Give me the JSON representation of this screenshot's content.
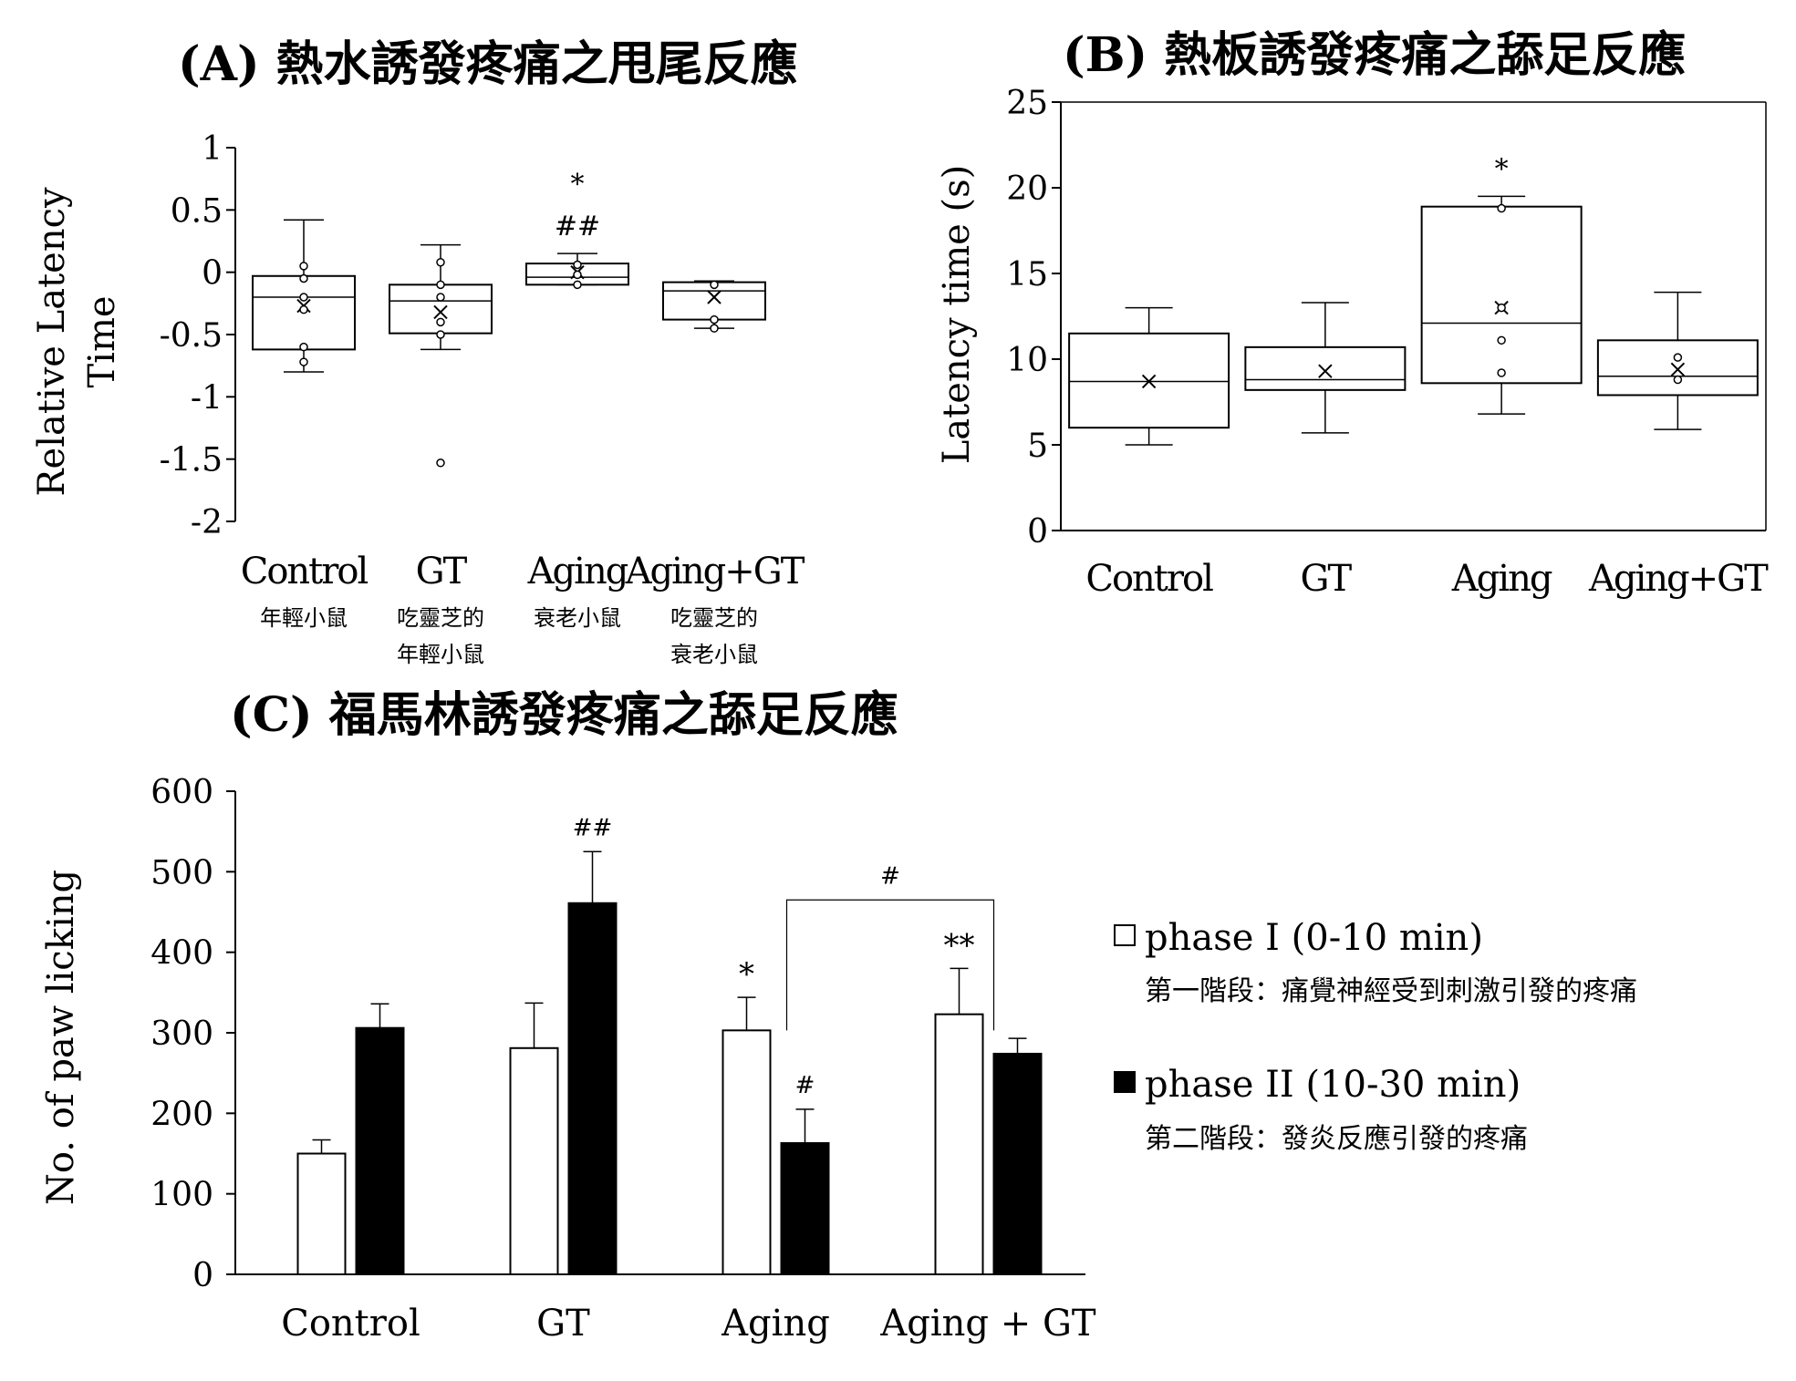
{
  "chart_data": [
    {
      "id": "A",
      "type": "box",
      "title": "(A) 熱水誘發疼痛之甩尾反應",
      "ylabel_lines": [
        "Relative Latency",
        "Time"
      ],
      "ylim": [
        -2,
        1
      ],
      "yticks": [
        1,
        0.5,
        0,
        -0.5,
        -1,
        -1.5,
        -2
      ],
      "ytick_labels": [
        "1",
        "0.5",
        "0",
        "-0.5",
        "-1",
        "-1.5",
        "-2"
      ],
      "categories": [
        "Control",
        "GT",
        "Aging",
        "Aging+GT"
      ],
      "sublabels": [
        [
          "年輕小鼠"
        ],
        [
          "吃靈芝的",
          "年輕小鼠"
        ],
        [
          "衰老小鼠"
        ],
        [
          "吃靈芝的",
          "衰老小鼠"
        ]
      ],
      "boxes": [
        {
          "min": -0.8,
          "q1": -0.62,
          "median": -0.2,
          "q3": -0.03,
          "max": 0.42,
          "mean": -0.27,
          "points": [
            0.05,
            -0.05,
            -0.2,
            -0.3,
            -0.6,
            -0.72
          ]
        },
        {
          "min": -0.62,
          "q1": -0.49,
          "median": -0.23,
          "q3": -0.1,
          "max": 0.22,
          "mean": -0.32,
          "points": [
            0.08,
            -0.1,
            -0.2,
            -0.4,
            -0.5,
            -1.53
          ]
        },
        {
          "min": -0.1,
          "q1": -0.1,
          "median": -0.04,
          "q3": 0.07,
          "max": 0.15,
          "mean": 0.0,
          "points": [
            0.06,
            -0.02,
            -0.1
          ]
        },
        {
          "min": -0.45,
          "q1": -0.38,
          "median": -0.15,
          "q3": -0.08,
          "max": -0.07,
          "mean": -0.2,
          "points": [
            -0.1,
            -0.38,
            -0.45
          ]
        }
      ],
      "annotations": [
        {
          "category": "Aging",
          "lines": [
            "*",
            "##"
          ]
        }
      ]
    },
    {
      "id": "B",
      "type": "box",
      "title": "(B) 熱板誘發疼痛之舔足反應",
      "ylabel": "Latency time (s)",
      "ylim": [
        0,
        25
      ],
      "yticks": [
        25,
        20,
        15,
        10,
        5,
        0
      ],
      "ytick_labels": [
        "25",
        "20",
        "15",
        "10",
        "5",
        "0"
      ],
      "categories": [
        "Control",
        "GT",
        "Aging",
        "Aging+GT"
      ],
      "boxes": [
        {
          "min": 5,
          "q1": 6,
          "median": 8.7,
          "q3": 11.5,
          "max": 13,
          "mean": 8.7,
          "points": []
        },
        {
          "min": 5.7,
          "q1": 8.2,
          "median": 8.8,
          "q3": 10.7,
          "max": 13.3,
          "mean": 9.3,
          "points": []
        },
        {
          "min": 6.8,
          "q1": 8.6,
          "median": 12.1,
          "q3": 18.9,
          "max": 19.5,
          "mean": 13,
          "points": [
            18.8,
            13,
            11.1,
            9.2
          ]
        },
        {
          "min": 5.9,
          "q1": 7.9,
          "median": 9,
          "q3": 11.1,
          "max": 13.9,
          "mean": 9.4,
          "points": [
            10.1,
            8.8
          ]
        }
      ],
      "annotations": [
        {
          "category": "Aging",
          "lines": [
            "*"
          ]
        }
      ]
    },
    {
      "id": "C",
      "type": "bar",
      "title": "(C) 福馬林誘發疼痛之舔足反應",
      "ylabel": "No. of paw licking",
      "ylim": [
        0,
        600
      ],
      "yticks": [
        600,
        500,
        400,
        300,
        200,
        100,
        0
      ],
      "ytick_labels": [
        "600",
        "500",
        "400",
        "300",
        "200",
        "100",
        "0"
      ],
      "categories": [
        "Control",
        "GT",
        "Aging",
        "Aging + GT"
      ],
      "series": [
        {
          "name": "phase I (0-10 min)",
          "legend_sub": "第一階段：痛覺神經受到刺激引發的疼痛",
          "color": "#ffffff",
          "values": [
            150,
            281,
            303,
            323
          ],
          "errors": [
            17,
            56,
            41,
            57
          ],
          "labels": [
            "",
            "",
            "*",
            "**"
          ]
        },
        {
          "name": "phase II (10-30 min)",
          "legend_sub": "第二階段：發炎反應引發的疼痛",
          "color": "#000000",
          "values": [
            306,
            461,
            163,
            274
          ],
          "errors": [
            30,
            64,
            42,
            19
          ],
          "labels": [
            "",
            "##",
            "#",
            ""
          ]
        }
      ],
      "bracket": {
        "from": "Aging",
        "to": "Aging + GT",
        "label": "#"
      }
    }
  ]
}
